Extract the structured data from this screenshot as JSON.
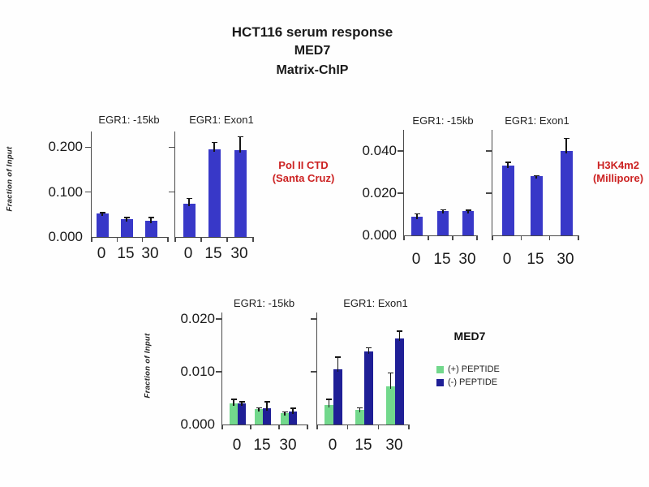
{
  "title": {
    "line1": "HCT116 serum response",
    "line2": "MED7",
    "line3": "Matrix-ChIP"
  },
  "colors": {
    "bar_blue": "#3838c8",
    "peptide_green": "#72d88c",
    "peptide_navy": "#1f1f96",
    "annotation_red": "#cc2222",
    "axis": "#4a4a4a"
  },
  "chart_data": [
    {
      "type": "bar",
      "annotation": {
        "line1": "Pol II CTD",
        "line2": "(Santa Cruz)"
      },
      "ylabel": "Fraction of Input",
      "yticks": [
        "0.200",
        "0.100",
        "0.000"
      ],
      "ylim": [
        0,
        0.235
      ],
      "ytick_interval": 0.1,
      "grid": false,
      "panels": [
        {
          "title": "EGR1: -15kb",
          "categories": [
            "0",
            "15",
            "30"
          ],
          "values": [
            0.052,
            0.04,
            0.036
          ],
          "errors": [
            0.004,
            0.005,
            0.009
          ]
        },
        {
          "title": "EGR1: Exon1",
          "categories": [
            "0",
            "15",
            "30"
          ],
          "values": [
            0.075,
            0.196,
            0.194
          ],
          "errors": [
            0.012,
            0.016,
            0.031
          ]
        }
      ]
    },
    {
      "type": "bar",
      "annotation": {
        "line1": "H3K4m2",
        "line2": "(Millipore)"
      },
      "ylabel": "",
      "yticks": [
        "0.040",
        "0.020",
        "0.000"
      ],
      "ylim": [
        0,
        0.05
      ],
      "ytick_interval": 0.02,
      "grid": false,
      "panels": [
        {
          "title": "EGR1: -15kb",
          "categories": [
            "0",
            "15",
            "30"
          ],
          "values": [
            0.009,
            0.0115,
            0.0115
          ],
          "errors": [
            0.0015,
            0.001,
            0.0008
          ]
        },
        {
          "title": "EGR1: Exon1",
          "categories": [
            "0",
            "15",
            "30"
          ],
          "values": [
            0.033,
            0.028,
            0.04
          ],
          "errors": [
            0.002,
            0.0006,
            0.0062
          ]
        }
      ]
    },
    {
      "type": "grouped_bar",
      "annotation": {
        "line1": "MED7"
      },
      "ylabel": "Fraction of Input",
      "yticks": [
        "0.020",
        "0.010",
        "0.000"
      ],
      "ylim": [
        0,
        0.0212
      ],
      "ytick_interval": 0.01,
      "grid": false,
      "legend_position": "right",
      "legend": [
        {
          "label": "(+) PEPTIDE",
          "color": "#72d88c"
        },
        {
          "label": "(-) PEPTIDE",
          "color": "#1f1f96"
        }
      ],
      "panels": [
        {
          "title": "EGR1: -15kb",
          "categories": [
            "0",
            "15",
            "30"
          ],
          "series": [
            {
              "name": "(+) PEPTIDE",
              "values": [
                0.004,
                0.0029,
                0.0021
              ],
              "errors": [
                0.0009,
                0.0004,
                0.0004
              ]
            },
            {
              "name": "(-) PEPTIDE",
              "values": [
                0.004,
                0.003,
                0.0024
              ],
              "errors": [
                0.0004,
                0.0014,
                0.0008
              ]
            }
          ]
        },
        {
          "title": "EGR1: Exon1",
          "categories": [
            "0",
            "15",
            "30"
          ],
          "series": [
            {
              "name": "(+) PEPTIDE",
              "values": [
                0.0037,
                0.0028,
                0.0072
              ],
              "errors": [
                0.0012,
                0.0005,
                0.0027
              ]
            },
            {
              "name": "(-) PEPTIDE",
              "values": [
                0.0105,
                0.0138,
                0.0163
              ],
              "errors": [
                0.0024,
                0.0008,
                0.0015
              ]
            }
          ]
        }
      ]
    }
  ]
}
